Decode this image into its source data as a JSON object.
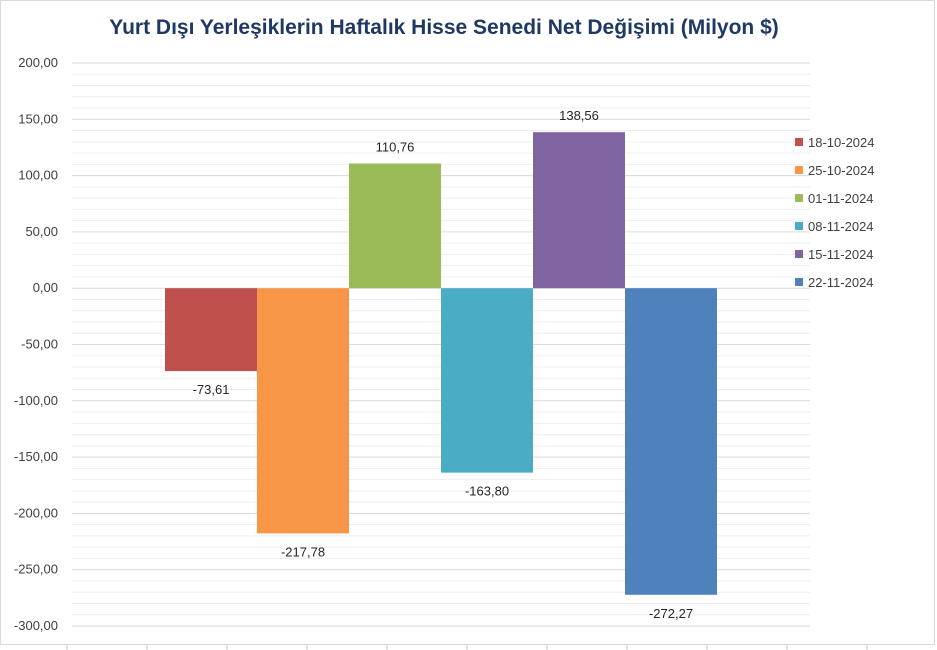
{
  "chart_data": {
    "type": "bar",
    "title": "Yurt Dışı Yerleşiklerin Haftalık Hisse Senedi Net Değişimi (Milyon $)",
    "xlabel": "",
    "ylabel": "",
    "ylim": [
      -300,
      200
    ],
    "yticks": [
      "200,00",
      "150,00",
      "100,00",
      "50,00",
      "0,00",
      "-50,00",
      "-100,00",
      "-150,00",
      "-200,00",
      "-250,00",
      "-300,00"
    ],
    "grid": true,
    "legend_position": "right",
    "series": [
      {
        "name": "18-10-2024",
        "value": -73.61,
        "label": "-73,61",
        "color": "#c0504d"
      },
      {
        "name": "25-10-2024",
        "value": -217.78,
        "label": "-217,78",
        "color": "#f79646"
      },
      {
        "name": "01-11-2024",
        "value": 110.76,
        "label": "110,76",
        "color": "#9bbb59"
      },
      {
        "name": "08-11-2024",
        "value": -163.8,
        "label": "-163,80",
        "color": "#4bacc6"
      },
      {
        "name": "15-11-2024",
        "value": 138.56,
        "label": "138,56",
        "color": "#8064a2"
      },
      {
        "name": "22-11-2024",
        "value": -272.27,
        "label": "-272,27",
        "color": "#4f81bd"
      }
    ]
  }
}
